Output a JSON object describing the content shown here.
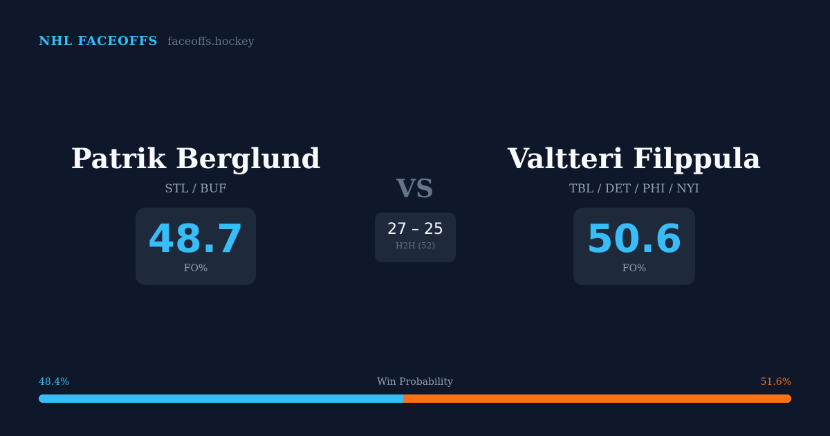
{
  "brand": {
    "title": "NHL FACEOFFS",
    "url": "faceoffs.hockey"
  },
  "player1": {
    "name": "Patrik Berglund",
    "teams": "STL / BUF",
    "fo_pct": "48.7",
    "fo_label": "FO%"
  },
  "player2": {
    "name": "Valtteri Filppula",
    "teams": "TBL / DET / PHI / NYI",
    "fo_pct": "50.6",
    "fo_label": "FO%"
  },
  "vs": "VS",
  "h2h": {
    "score": "27 – 25",
    "label": "H2H (52)"
  },
  "win_probability": {
    "label": "Win Probability",
    "left": "48.4%",
    "right": "51.6%",
    "left_value": 48.4,
    "left_color": "#38bdf8",
    "right_color": "#f97316"
  }
}
